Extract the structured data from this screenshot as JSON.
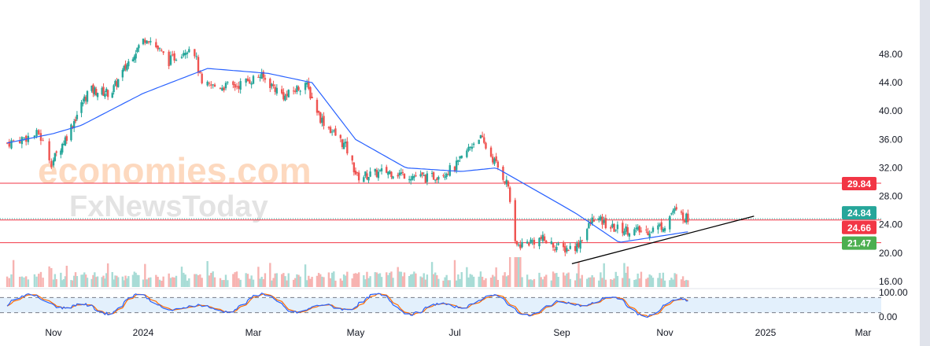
{
  "chart_data": {
    "type": "candlestick",
    "title": "",
    "watermark": [
      "economies.com",
      "FxNewsToday"
    ],
    "y_axis": {
      "range": [
        16,
        50.5
      ],
      "ticks": [
        "48.00",
        "44.00",
        "40.00",
        "36.00",
        "32.00",
        "28.00",
        "24.00",
        "20.00",
        "16.00"
      ]
    },
    "x_axis": {
      "ticks": [
        "Nov",
        "2024",
        "Mar",
        "May",
        "Jul",
        "Sep",
        "Nov",
        "2025",
        "Mar"
      ]
    },
    "price_keypoints": [
      [
        "2023-10-10",
        35.5
      ],
      [
        "2023-10-25",
        36.8
      ],
      [
        "2023-10-31",
        32.8
      ],
      [
        "2023-11-10",
        36.5
      ],
      [
        "2023-11-25",
        43
      ],
      [
        "2023-12-10",
        42.5
      ],
      [
        "2023-12-25",
        48
      ],
      [
        "2024-01-03",
        50.5
      ],
      [
        "2024-01-15",
        47
      ],
      [
        "2024-01-28",
        49.5
      ],
      [
        "2024-02-02",
        43.5
      ],
      [
        "2024-02-20",
        43.5
      ],
      [
        "2024-03-05",
        45
      ],
      [
        "2024-03-20",
        42
      ],
      [
        "2024-04-01",
        44
      ],
      [
        "2024-04-10",
        39
      ],
      [
        "2024-04-25",
        35
      ],
      [
        "2024-05-02",
        30.7
      ],
      [
        "2024-05-20",
        31.5
      ],
      [
        "2024-06-15",
        30.5
      ],
      [
        "2024-07-01",
        32
      ],
      [
        "2024-07-10",
        35
      ],
      [
        "2024-07-15",
        36.5
      ],
      [
        "2024-07-25",
        32.5
      ],
      [
        "2024-08-01",
        29.5
      ],
      [
        "2024-08-05",
        21
      ],
      [
        "2024-08-20",
        22
      ],
      [
        "2024-09-01",
        20.5
      ],
      [
        "2024-09-10",
        21
      ],
      [
        "2024-09-20",
        25
      ],
      [
        "2024-10-01",
        23.5
      ],
      [
        "2024-10-20",
        23
      ],
      [
        "2024-11-01",
        24
      ],
      [
        "2024-11-06",
        26
      ],
      [
        "2024-11-15",
        24.8
      ]
    ],
    "moving_average_keypoints": [
      [
        "2023-10-10",
        35.5
      ],
      [
        "2023-11-20",
        38
      ],
      [
        "2024-01-01",
        42.5
      ],
      [
        "2024-02-05",
        46
      ],
      [
        "2024-03-10",
        45.3
      ],
      [
        "2024-04-05",
        44
      ],
      [
        "2024-05-01",
        36
      ],
      [
        "2024-06-01",
        32
      ],
      [
        "2024-07-05",
        31.5
      ],
      [
        "2024-07-25",
        32
      ],
      [
        "2024-09-10",
        25.5
      ],
      [
        "2024-10-05",
        21.5
      ],
      [
        "2024-11-15",
        23
      ]
    ],
    "horizontal_levels": [
      {
        "value": 29.84,
        "label": "29.84",
        "color": "#f23645"
      },
      {
        "value": 24.84,
        "label": "24.84",
        "color": "#26a69a",
        "style": "dotted"
      },
      {
        "value": 24.66,
        "label": "24.66",
        "color": "#f23645"
      },
      {
        "value": 21.47,
        "label": "21.47",
        "color": "#4caf50",
        "line_color": "#f23645"
      }
    ],
    "trendline": {
      "from": [
        "2024-09-07",
        18.5
      ],
      "to": [
        "2024-12-25",
        25.2
      ]
    },
    "stochastic": {
      "range": [
        0,
        100
      ],
      "ticks": [
        "100.00",
        "0.00"
      ],
      "upper": 80,
      "lower": 20
    },
    "colors": {
      "up": "#26a69a",
      "down": "#ef5350",
      "ma": "#2962ff",
      "stoch_k": "#2962ff",
      "stoch_d": "#ff6d00"
    }
  }
}
